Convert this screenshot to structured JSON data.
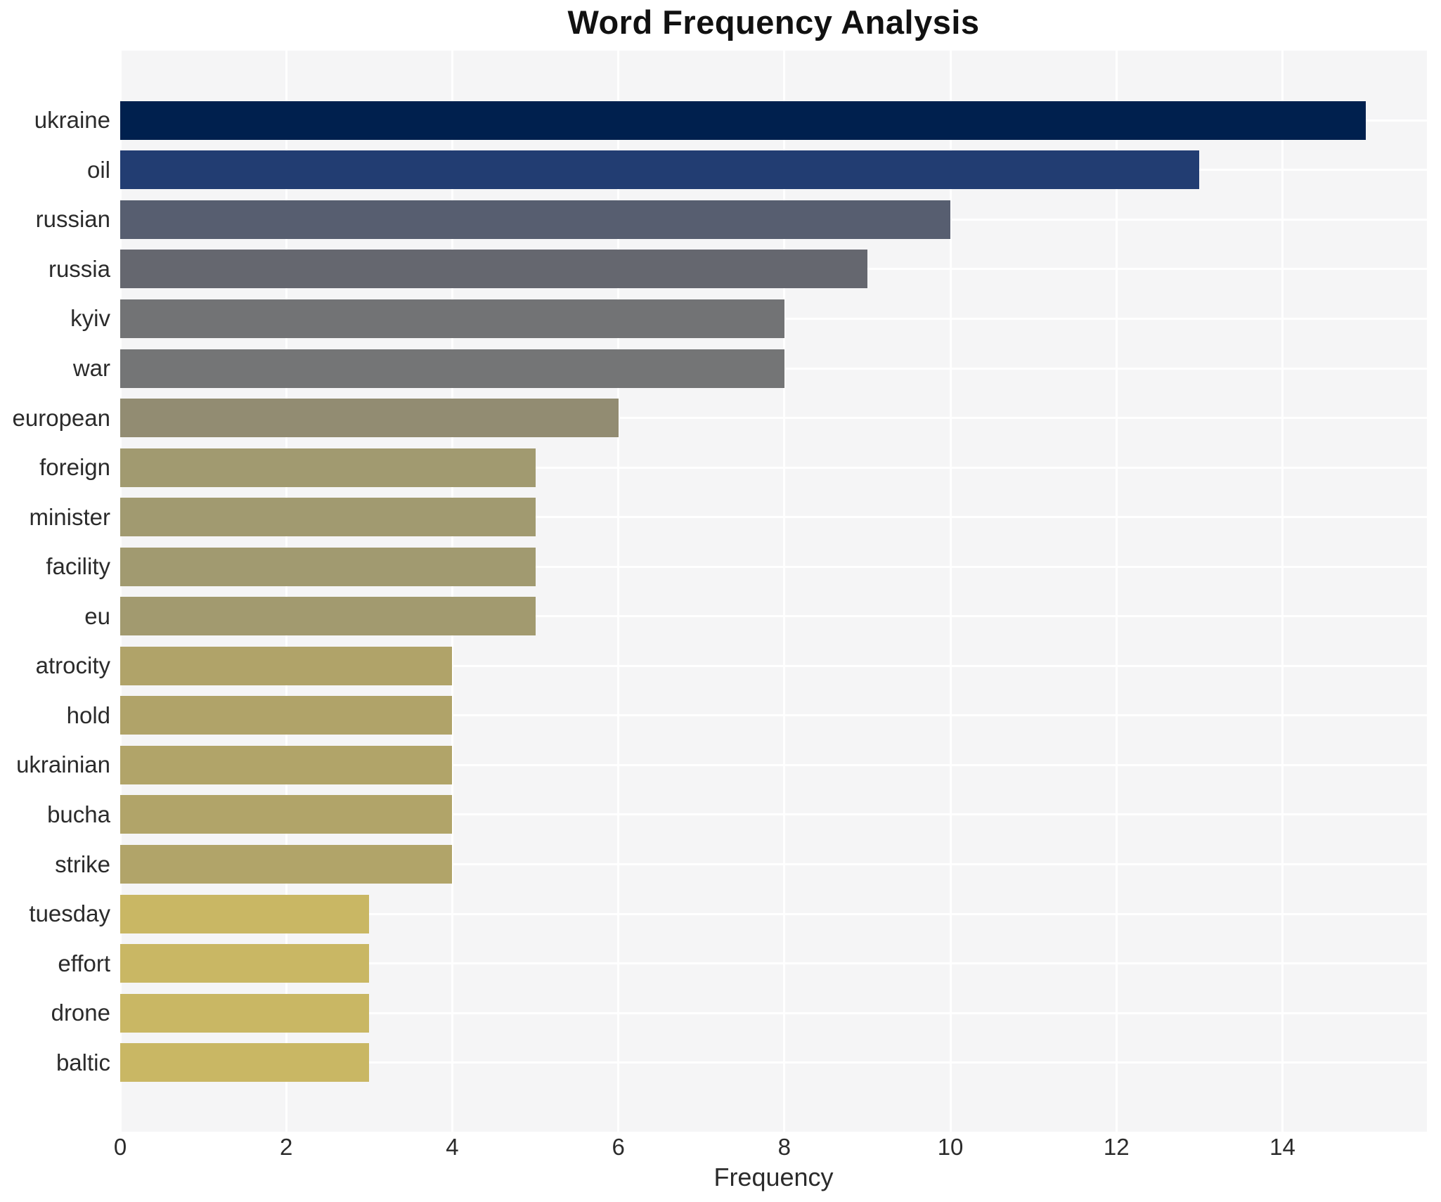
{
  "chart_data": {
    "type": "bar",
    "orientation": "horizontal",
    "title": "Word Frequency Analysis",
    "xlabel": "Frequency",
    "ylabel": "",
    "categories": [
      "ukraine",
      "oil",
      "russian",
      "russia",
      "kyiv",
      "war",
      "european",
      "foreign",
      "minister",
      "facility",
      "eu",
      "atrocity",
      "hold",
      "ukrainian",
      "bucha",
      "strike",
      "tuesday",
      "effort",
      "drone",
      "baltic"
    ],
    "values": [
      15,
      13,
      10,
      9,
      8,
      8,
      6,
      5,
      5,
      5,
      5,
      4,
      4,
      4,
      4,
      4,
      3,
      3,
      3,
      3
    ],
    "bar_colors": [
      "#00204e",
      "#223d72",
      "#575e70",
      "#65676f",
      "#727375",
      "#747576",
      "#928c72",
      "#a19a70",
      "#a19a70",
      "#a19a70",
      "#a29a6f",
      "#b0a369",
      "#b0a369",
      "#b1a469",
      "#b1a469",
      "#b1a469",
      "#c9b764",
      "#c9b764",
      "#c9b764",
      "#c9b764"
    ],
    "xticks": [
      0,
      2,
      4,
      6,
      8,
      10,
      12,
      14
    ],
    "xlim": [
      0,
      15.74
    ],
    "grid": "on",
    "legend_position": "none",
    "plot_background": "#f5f5f6",
    "gridline_color": "#ffffff",
    "text_color": "#2b2b2b",
    "title_color": "#111111"
  }
}
